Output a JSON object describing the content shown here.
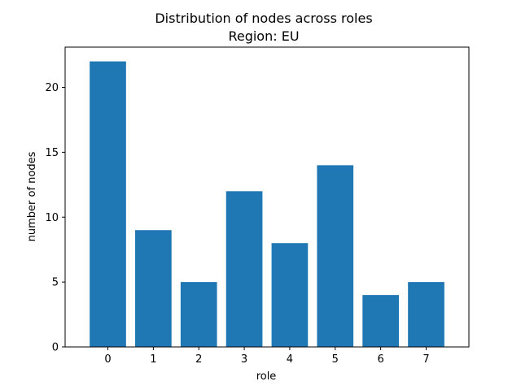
{
  "chart_data": {
    "type": "bar",
    "title_lines": [
      "Distribution of nodes across roles",
      "Region: EU"
    ],
    "xlabel": "role",
    "ylabel": "number of nodes",
    "categories": [
      "0",
      "1",
      "2",
      "3",
      "4",
      "5",
      "6",
      "7"
    ],
    "values": [
      22,
      9,
      5,
      12,
      8,
      14,
      4,
      5
    ],
    "ylim": [
      0,
      23.1
    ],
    "yticks": [
      0,
      5,
      10,
      15,
      20
    ],
    "bar_color": "#1f77b4",
    "grid": false,
    "legend": "none"
  }
}
